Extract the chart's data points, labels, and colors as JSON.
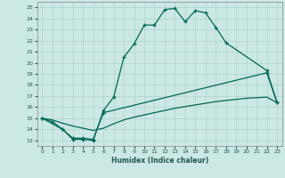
{
  "xlabel": "Humidex (Indice chaleur)",
  "bg_color": "#cce8e4",
  "grid_color": "#aad4d0",
  "line_color": "#006655",
  "line1": {
    "x": [
      0,
      1,
      2,
      3,
      4,
      5,
      6,
      7,
      8,
      9,
      10,
      11,
      12,
      13,
      14,
      15,
      16,
      17,
      18,
      22,
      23
    ],
    "y": [
      15.0,
      14.7,
      14.0,
      13.1,
      13.1,
      13.0,
      15.7,
      16.9,
      20.5,
      21.7,
      23.4,
      23.4,
      24.8,
      24.9,
      23.7,
      24.7,
      24.5,
      23.2,
      21.8,
      19.3,
      16.4
    ]
  },
  "line2": {
    "x": [
      0,
      2,
      3,
      4,
      5,
      6,
      22,
      23
    ],
    "y": [
      15.0,
      14.0,
      13.2,
      13.2,
      13.1,
      15.5,
      19.1,
      16.4
    ]
  },
  "line3": {
    "x": [
      0,
      1,
      2,
      3,
      4,
      5,
      6,
      7,
      8,
      9,
      10,
      11,
      12,
      13,
      14,
      15,
      16,
      17,
      18,
      19,
      20,
      21,
      22,
      23
    ],
    "y": [
      15.0,
      14.85,
      14.55,
      14.3,
      14.1,
      13.9,
      14.1,
      14.5,
      14.85,
      15.1,
      15.3,
      15.5,
      15.7,
      15.9,
      16.05,
      16.2,
      16.35,
      16.5,
      16.6,
      16.7,
      16.8,
      16.85,
      16.9,
      16.4
    ]
  },
  "xlim": [
    -0.5,
    23.5
  ],
  "ylim": [
    12.5,
    25.5
  ],
  "xticks": [
    0,
    1,
    2,
    3,
    4,
    5,
    6,
    7,
    8,
    9,
    10,
    11,
    12,
    13,
    14,
    15,
    16,
    17,
    18,
    19,
    20,
    21,
    22,
    23
  ],
  "yticks": [
    13,
    14,
    15,
    16,
    17,
    18,
    19,
    20,
    21,
    22,
    23,
    24,
    25
  ]
}
